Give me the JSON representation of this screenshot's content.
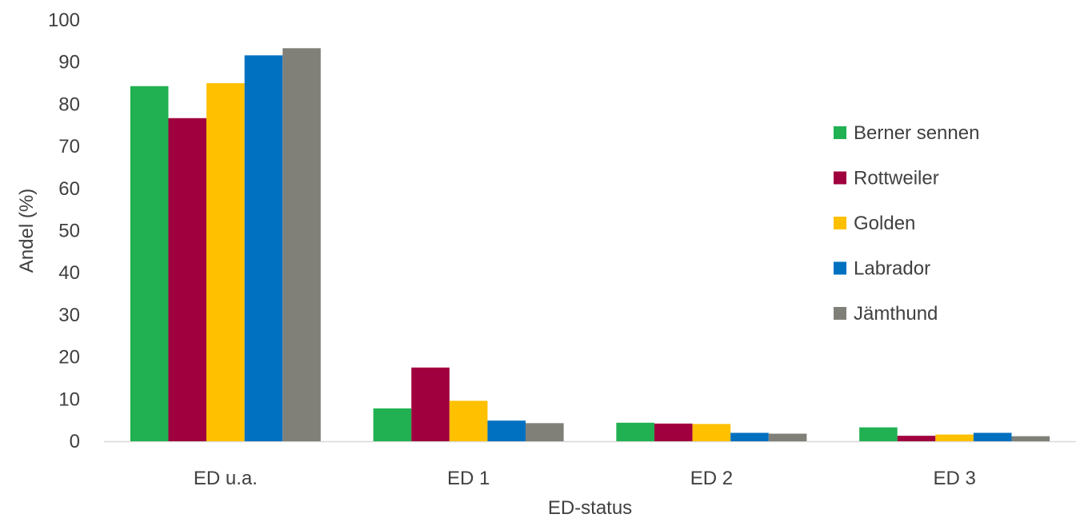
{
  "chart_data": {
    "type": "bar",
    "title": "",
    "xlabel": "ED-status",
    "ylabel": "Andel (%)",
    "ylim": [
      0,
      100
    ],
    "yticks": [
      0,
      10,
      20,
      30,
      40,
      50,
      60,
      70,
      80,
      90,
      100
    ],
    "grid": false,
    "legend_position": "right",
    "categories": [
      "ED u.a.",
      "ED 1",
      "ED 2",
      "ED 3"
    ],
    "series": [
      {
        "name": "Berner sennen",
        "color": "#21B152",
        "values": [
          84.3,
          7.8,
          4.4,
          3.3
        ]
      },
      {
        "name": "Rottweiler",
        "color": "#A0003E",
        "values": [
          76.7,
          17.5,
          4.2,
          1.3
        ]
      },
      {
        "name": "Golden",
        "color": "#FFC000",
        "values": [
          85.0,
          9.6,
          4.1,
          1.6
        ]
      },
      {
        "name": "Labrador",
        "color": "#0070C0",
        "values": [
          91.6,
          4.9,
          2.0,
          2.0
        ]
      },
      {
        "name": "Jämthund",
        "color": "#808078",
        "values": [
          93.3,
          4.3,
          1.8,
          1.2
        ]
      }
    ]
  }
}
